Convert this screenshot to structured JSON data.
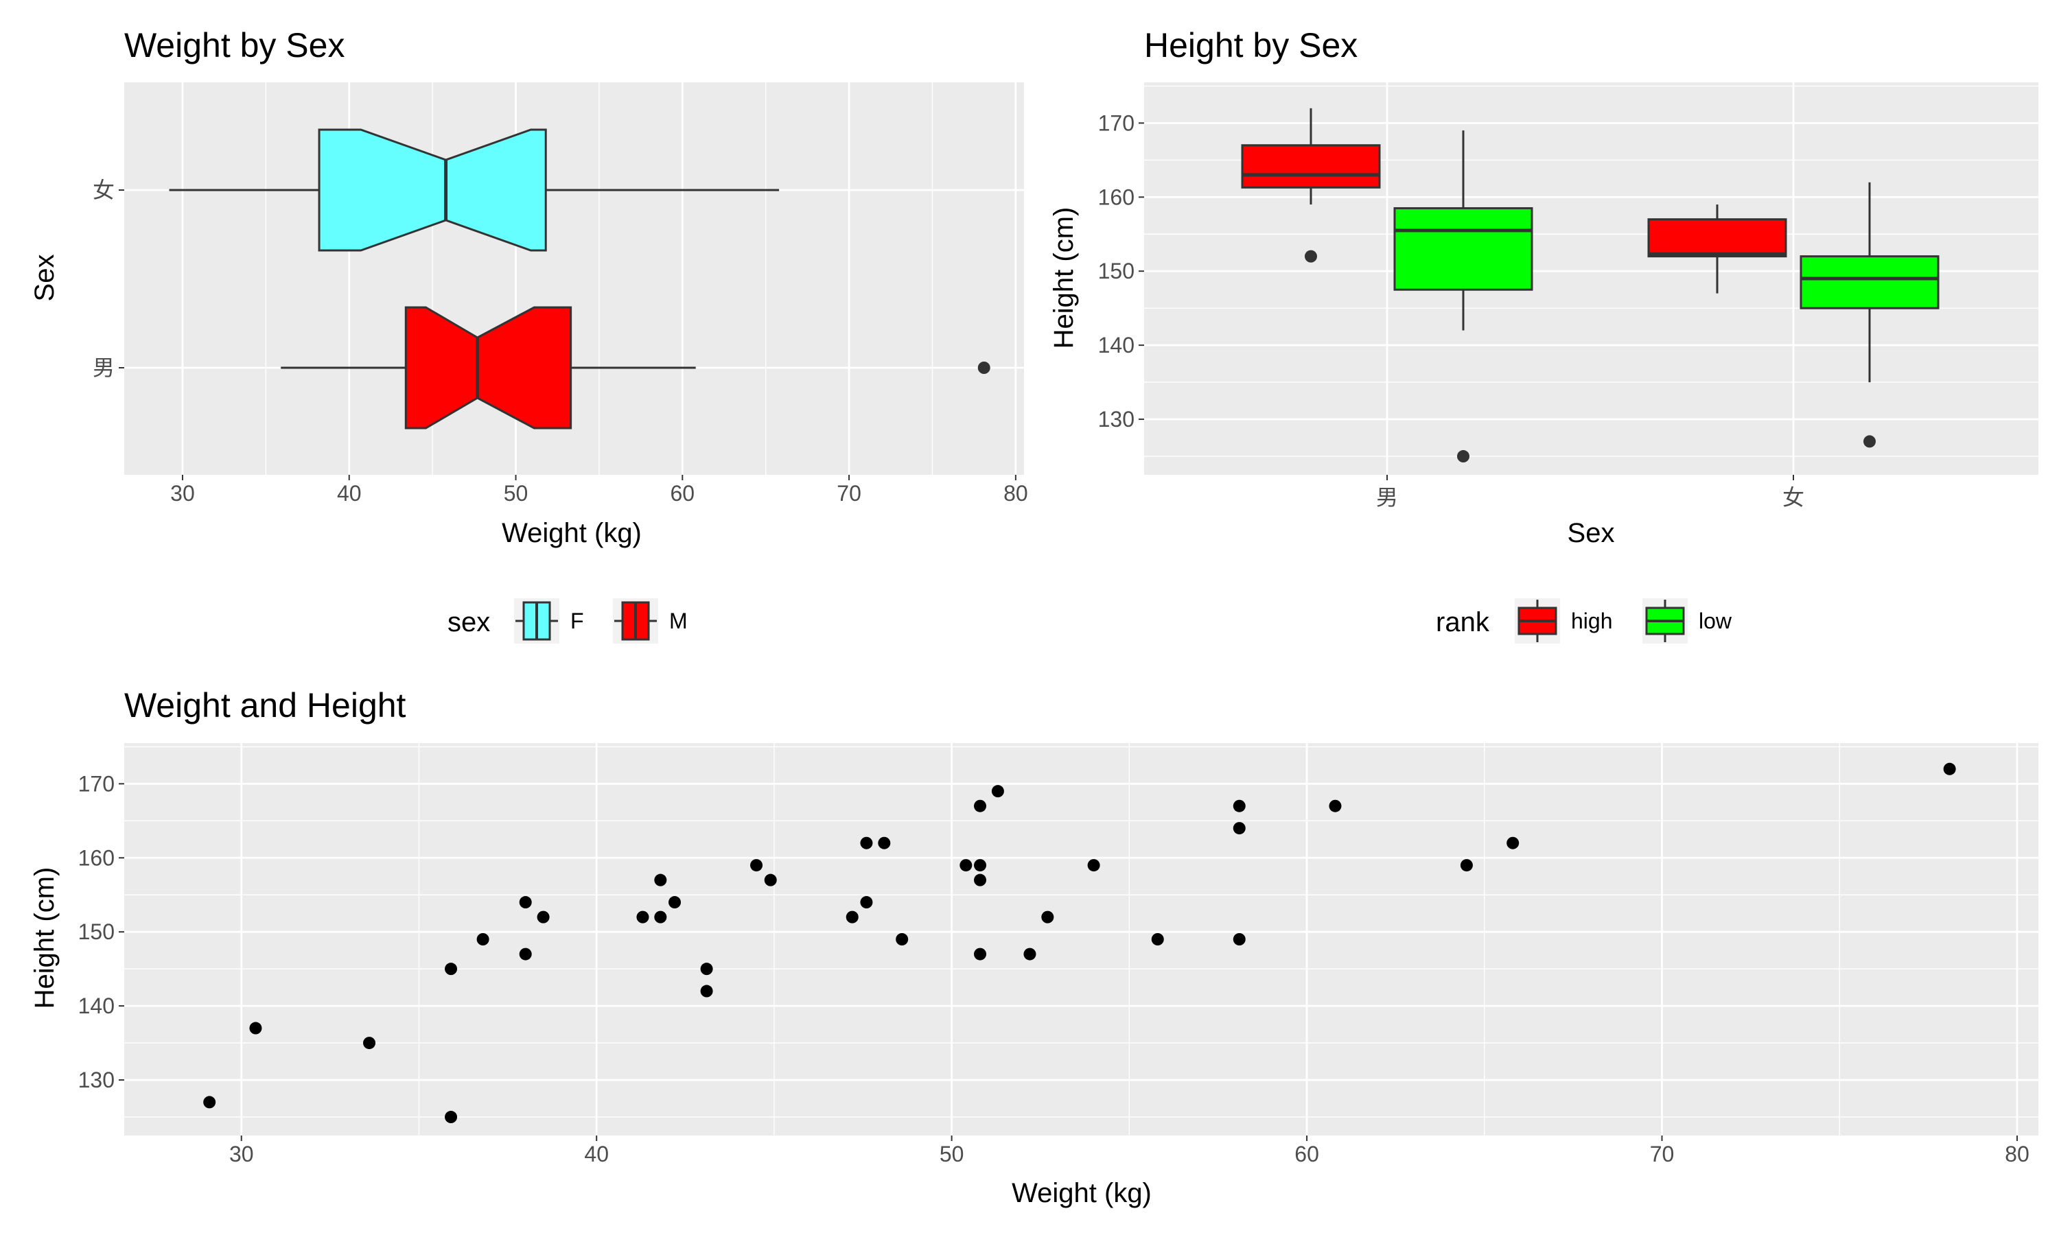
{
  "chart_data": [
    {
      "type": "boxplot",
      "orientation": "horizontal",
      "notched": true,
      "title": "Weight by Sex",
      "xlabel": "Weight (kg)",
      "ylabel": "Sex",
      "xlim": [
        26.5,
        80.5
      ],
      "x_ticks": [
        30,
        40,
        50,
        60,
        70,
        80
      ],
      "categories": [
        "女",
        "男"
      ],
      "boxes": [
        {
          "category": "女",
          "group": "F",
          "whisker_low": 29.2,
          "q1": 38.2,
          "notch_low": 40.7,
          "median": 45.8,
          "notch_high": 50.9,
          "q3": 51.8,
          "whisker_high": 65.8,
          "outliers": []
        },
        {
          "category": "男",
          "group": "M",
          "whisker_low": 35.9,
          "q1": 43.4,
          "notch_low": 44.6,
          "median": 47.7,
          "notch_high": 51.1,
          "q3": 53.3,
          "whisker_high": 60.8,
          "outliers": [
            78.1
          ]
        }
      ],
      "legend": {
        "title": "sex",
        "position": "bottom",
        "entries": [
          {
            "label": "F",
            "color": "#66ffff"
          },
          {
            "label": "M",
            "color": "#ff0000"
          }
        ]
      },
      "grid": true
    },
    {
      "type": "boxplot",
      "orientation": "vertical",
      "title": "Height by Sex",
      "xlabel": "Sex",
      "ylabel": "Height (cm)",
      "ylim": [
        122.5,
        175.5
      ],
      "y_ticks": [
        130,
        140,
        150,
        160,
        170
      ],
      "categories": [
        "男",
        "女"
      ],
      "boxes": [
        {
          "category": "男",
          "group": "high",
          "whisker_low": 159,
          "q1": 161.3,
          "median": 163,
          "q3": 167,
          "whisker_high": 172,
          "outliers": [
            152
          ]
        },
        {
          "category": "男",
          "group": "low",
          "whisker_low": 142,
          "q1": 147.5,
          "median": 155.5,
          "q3": 158.5,
          "whisker_high": 169,
          "outliers": [
            125
          ]
        },
        {
          "category": "女",
          "group": "high",
          "whisker_low": 147,
          "q1": 152,
          "median": 152.3,
          "q3": 157,
          "whisker_high": 159,
          "outliers": []
        },
        {
          "category": "女",
          "group": "low",
          "whisker_low": 135,
          "q1": 145,
          "median": 149,
          "q3": 152,
          "whisker_high": 162,
          "outliers": [
            127
          ]
        }
      ],
      "legend": {
        "title": "rank",
        "position": "bottom",
        "entries": [
          {
            "label": "high",
            "color": "#ff0000"
          },
          {
            "label": "low",
            "color": "#00ff00"
          }
        ]
      },
      "grid": true
    },
    {
      "type": "scatter",
      "title": "Weight and Height",
      "xlabel": "Weight (kg)",
      "ylabel": "Height (cm)",
      "xlim": [
        26.7,
        80.6
      ],
      "ylim": [
        122.5,
        175.5
      ],
      "x_ticks": [
        30,
        40,
        50,
        60,
        70,
        80
      ],
      "y_ticks": [
        130,
        140,
        150,
        160,
        170
      ],
      "points": [
        [
          29.1,
          127
        ],
        [
          30.4,
          137
        ],
        [
          33.6,
          135
        ],
        [
          35.9,
          145
        ],
        [
          35.9,
          125
        ],
        [
          36.8,
          149
        ],
        [
          38.0,
          154
        ],
        [
          38.0,
          147
        ],
        [
          38.5,
          152
        ],
        [
          41.3,
          152
        ],
        [
          41.8,
          157
        ],
        [
          41.8,
          152
        ],
        [
          42.2,
          154
        ],
        [
          43.1,
          145
        ],
        [
          43.1,
          142
        ],
        [
          44.5,
          159
        ],
        [
          44.9,
          157
        ],
        [
          47.2,
          152
        ],
        [
          47.6,
          162
        ],
        [
          47.6,
          154
        ],
        [
          48.1,
          162
        ],
        [
          48.6,
          149
        ],
        [
          50.4,
          159
        ],
        [
          50.8,
          167
        ],
        [
          50.8,
          159
        ],
        [
          50.8,
          157
        ],
        [
          50.8,
          147
        ],
        [
          51.3,
          169
        ],
        [
          52.2,
          147
        ],
        [
          52.7,
          152
        ],
        [
          54.0,
          159
        ],
        [
          55.8,
          149
        ],
        [
          58.1,
          167
        ],
        [
          58.1,
          164
        ],
        [
          58.1,
          149
        ],
        [
          60.8,
          167
        ],
        [
          64.5,
          159
        ],
        [
          65.8,
          162
        ],
        [
          78.1,
          172
        ]
      ],
      "point_color": "#000000",
      "grid": true
    }
  ]
}
